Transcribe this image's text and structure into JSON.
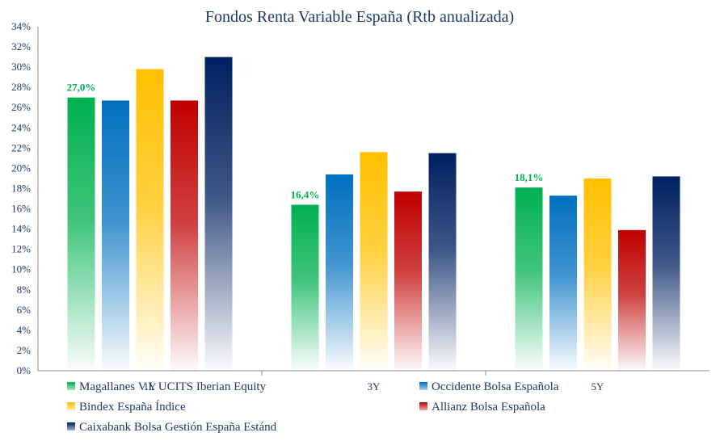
{
  "chart_data": {
    "type": "bar",
    "title": "Fondos Renta Variable España (Rtb anualizada)",
    "xlabel": "",
    "ylabel": "",
    "ylim": [
      0,
      34
    ],
    "ytick_step": 2,
    "ytick_format": "percent",
    "categories": [
      "1Y",
      "3Y",
      "5Y"
    ],
    "series": [
      {
        "name": "Magallanes V.I. UCITS Iberian Equity",
        "color": "#00b050",
        "values": [
          27.0,
          16.4,
          18.1
        ],
        "labels": [
          "27,0%",
          "16,4%",
          "18,1%"
        ]
      },
      {
        "name": "Occidente Bolsa Española",
        "color": "#0070c0",
        "values": [
          26.7,
          19.4,
          17.3
        ]
      },
      {
        "name": "Bindex España Índice",
        "color": "#ffc000",
        "values": [
          29.8,
          21.6,
          19.0
        ]
      },
      {
        "name": "Allianz Bolsa Española",
        "color": "#c00000",
        "values": [
          26.7,
          17.7,
          13.9
        ]
      },
      {
        "name": "Caixabank Bolsa Gestión España Estánd",
        "color": "#002060",
        "values": [
          31.0,
          21.5,
          19.2
        ]
      }
    ],
    "grid": false,
    "legend": "bottom"
  }
}
